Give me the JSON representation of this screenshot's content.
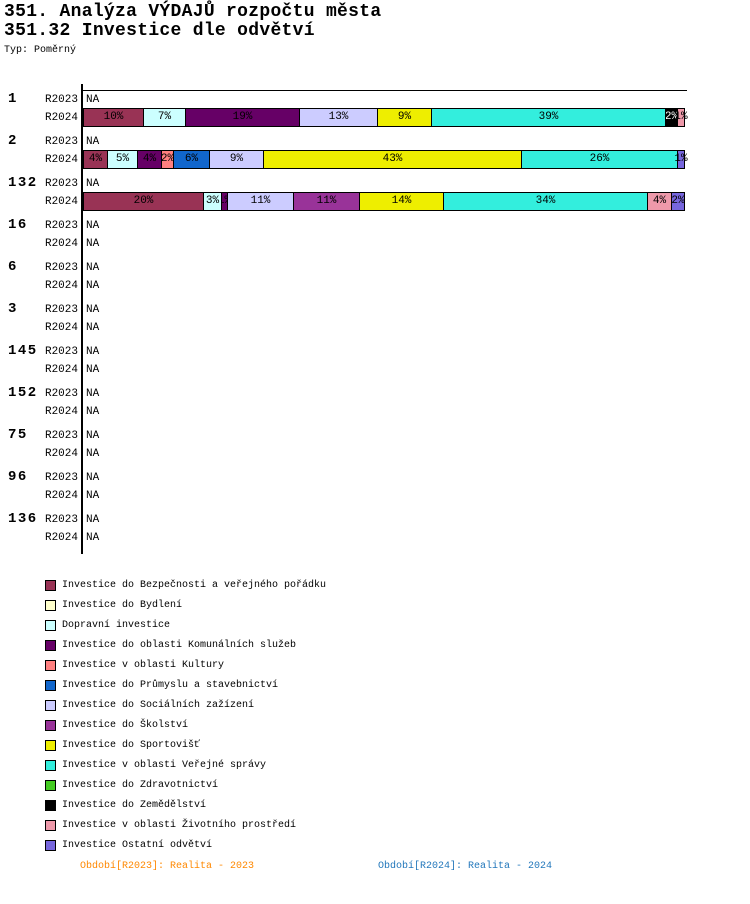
{
  "title": "351. Analýza VÝDAJŮ rozpočtu města",
  "subtitle": "351.32 Investice dle odvětví",
  "type_label": "Typ: Poměrný",
  "footer": {
    "left_text": "Období[R2023]: Realita - 2023",
    "left_color": "#FF8800",
    "right_text": "Období[R2024]: Realita - 2024",
    "right_color": "#2277BB"
  },
  "chart_data": {
    "type": "bar",
    "orientation": "horizontal",
    "stacked": true,
    "value_unit": "%",
    "axis_range_pct": [
      0,
      100
    ],
    "na_text": "NA",
    "period_labels": [
      "R2023",
      "R2024"
    ],
    "legend_position": "bottom-left",
    "legend": [
      {
        "label": "Investice do Bezpečnosti a veřejného pořádku",
        "color": "#993355"
      },
      {
        "label": "Investice do Bydlení",
        "color": "#FFFFCC"
      },
      {
        "label": "Dopravní investice",
        "color": "#CCFFFF"
      },
      {
        "label": "Investice do oblasti Komunálních služeb",
        "color": "#660066"
      },
      {
        "label": "Investice v oblasti Kultury",
        "color": "#FF8080"
      },
      {
        "label": "Investice do Průmyslu a stavebnictví",
        "color": "#1166CC"
      },
      {
        "label": "Investice do Sociálních zažízení",
        "color": "#CCCCFF"
      },
      {
        "label": "Investice do Školství",
        "color": "#993399"
      },
      {
        "label": "Investice do Sportovišť",
        "color": "#EEEE00"
      },
      {
        "label": "Investice v oblasti Veřejné správy",
        "color": "#33EEDD"
      },
      {
        "label": "Investice do Zdravotnictví",
        "color": "#44CC22"
      },
      {
        "label": "Investice do Zemědělství",
        "color": "#000000"
      },
      {
        "label": "Investice v oblasti Životního prostředí",
        "color": "#EE99AA"
      },
      {
        "label": "Investice Ostatní odvětví",
        "color": "#7766DD"
      }
    ],
    "rows": [
      {
        "id": "1",
        "periods": [
          {
            "label": "R2023",
            "na": true
          },
          {
            "label": "R2024",
            "segments": [
              {
                "legend": 0,
                "value": 10
              },
              {
                "legend": 2,
                "value": 7
              },
              {
                "legend": 3,
                "value": 19
              },
              {
                "legend": 6,
                "value": 13
              },
              {
                "legend": 8,
                "value": 9
              },
              {
                "legend": 9,
                "value": 39
              },
              {
                "legend": 11,
                "value": 2
              },
              {
                "legend": 12,
                "value": 1
              }
            ]
          }
        ]
      },
      {
        "id": "2",
        "periods": [
          {
            "label": "R2023",
            "na": true
          },
          {
            "label": "R2024",
            "segments": [
              {
                "legend": 0,
                "value": 4
              },
              {
                "legend": 2,
                "value": 5
              },
              {
                "legend": 3,
                "value": 4
              },
              {
                "legend": 4,
                "value": 2
              },
              {
                "legend": 5,
                "value": 6
              },
              {
                "legend": 6,
                "value": 9
              },
              {
                "legend": 8,
                "value": 43
              },
              {
                "legend": 9,
                "value": 26
              },
              {
                "legend": 13,
                "value": 1
              }
            ]
          }
        ]
      },
      {
        "id": "132",
        "periods": [
          {
            "label": "R2023",
            "na": true
          },
          {
            "label": "R2024",
            "segments": [
              {
                "legend": 0,
                "value": 20
              },
              {
                "legend": 2,
                "value": 3
              },
              {
                "legend": 3,
                "value": 1
              },
              {
                "legend": 6,
                "value": 11
              },
              {
                "legend": 7,
                "value": 11
              },
              {
                "legend": 8,
                "value": 14
              },
              {
                "legend": 9,
                "value": 34
              },
              {
                "legend": 12,
                "value": 4
              },
              {
                "legend": 13,
                "value": 2
              }
            ]
          }
        ]
      },
      {
        "id": "16",
        "periods": [
          {
            "label": "R2023",
            "na": true
          },
          {
            "label": "R2024",
            "na": true
          }
        ]
      },
      {
        "id": "6",
        "periods": [
          {
            "label": "R2023",
            "na": true
          },
          {
            "label": "R2024",
            "na": true
          }
        ]
      },
      {
        "id": "3",
        "periods": [
          {
            "label": "R2023",
            "na": true
          },
          {
            "label": "R2024",
            "na": true
          }
        ]
      },
      {
        "id": "145",
        "periods": [
          {
            "label": "R2023",
            "na": true
          },
          {
            "label": "R2024",
            "na": true
          }
        ]
      },
      {
        "id": "152",
        "periods": [
          {
            "label": "R2023",
            "na": true
          },
          {
            "label": "R2024",
            "na": true
          }
        ]
      },
      {
        "id": "75",
        "periods": [
          {
            "label": "R2023",
            "na": true
          },
          {
            "label": "R2024",
            "na": true
          }
        ]
      },
      {
        "id": "96",
        "periods": [
          {
            "label": "R2023",
            "na": true
          },
          {
            "label": "R2024",
            "na": true
          }
        ]
      },
      {
        "id": "136",
        "periods": [
          {
            "label": "R2023",
            "na": true
          },
          {
            "label": "R2024",
            "na": true
          }
        ]
      }
    ]
  }
}
